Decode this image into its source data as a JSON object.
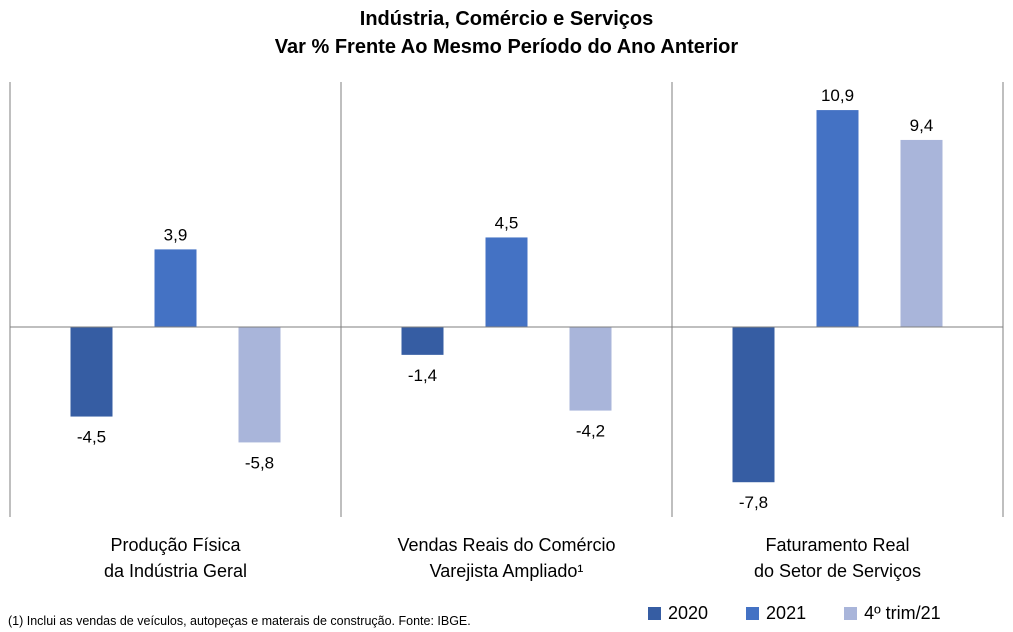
{
  "title": {
    "line1": "Indústria, Comércio e Serviços",
    "line2": "Var % Frente Ao Mesmo Período do Ano Anterior"
  },
  "footnote": "(1) Inclui as vendas de veículos, autopeças e materais de construção. Fonte: IBGE.",
  "chart_data": {
    "type": "bar",
    "title": "Indústria, Comércio e Serviços — Var % Frente Ao Mesmo Período do Ano Anterior",
    "categories": [
      [
        "Produção Física",
        "da Indústria Geral"
      ],
      [
        "Vendas Reais do Comércio",
        "Varejista Ampliado¹"
      ],
      [
        "Faturamento Real",
        "do Setor de Serviços"
      ]
    ],
    "series": [
      {
        "name": "2020",
        "color": "#365da3",
        "values": [
          -4.5,
          -1.4,
          -7.8
        ],
        "labels": [
          "-4,5",
          "-1,4",
          "-7,8"
        ]
      },
      {
        "name": "2021",
        "color": "#4472c4",
        "values": [
          3.9,
          4.5,
          10.9
        ],
        "labels": [
          "3,9",
          "4,5",
          "10,9"
        ]
      },
      {
        "name": "4º trim/21",
        "color": "#a9b5da",
        "values": [
          -5.8,
          -4.2,
          9.4
        ],
        "labels": [
          "-5,8",
          "-4,2",
          "9,4"
        ]
      }
    ],
    "xlabel": "",
    "ylabel": "",
    "ylim": [
      -9.5,
      12.4
    ],
    "grid": false,
    "legend": "bottom-right"
  }
}
